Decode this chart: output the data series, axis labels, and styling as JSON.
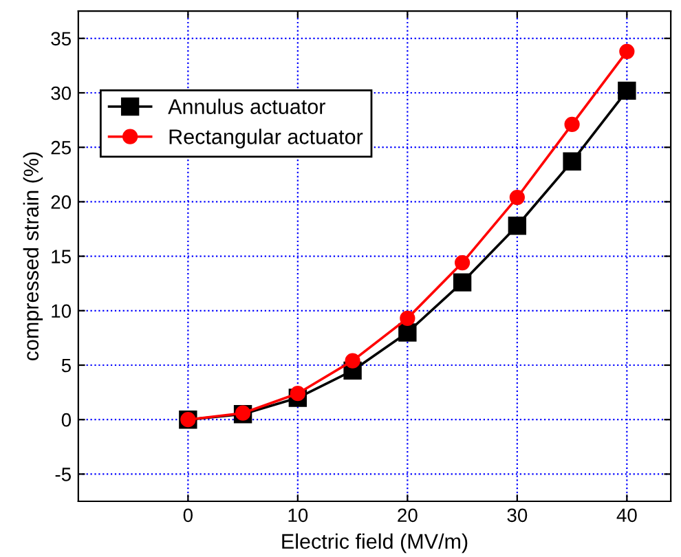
{
  "chart_data": {
    "type": "line",
    "xlabel": "Electric field (MV/m)",
    "ylabel": "compressed strain (%)",
    "x": [
      0,
      5,
      10,
      15,
      20,
      25,
      30,
      35,
      40
    ],
    "series": [
      {
        "name": "Annulus actuator",
        "color": "#000000",
        "marker": "square",
        "values": [
          0,
          0.5,
          2.0,
          4.5,
          8.0,
          12.6,
          17.8,
          23.7,
          30.2
        ]
      },
      {
        "name": "Rectangular actuator",
        "color": "#ff0000",
        "marker": "circle",
        "values": [
          0,
          0.6,
          2.4,
          5.4,
          9.3,
          14.4,
          20.4,
          27.1,
          33.8
        ]
      }
    ],
    "xlim": [
      -10,
      44
    ],
    "xticks": [
      0,
      10,
      20,
      30,
      40
    ],
    "ylim": [
      -7.5,
      37.5
    ],
    "yticks": [
      -5,
      0,
      5,
      10,
      15,
      20,
      25,
      30,
      35
    ],
    "grid": true,
    "legend": "top left",
    "line_style": "solid"
  }
}
